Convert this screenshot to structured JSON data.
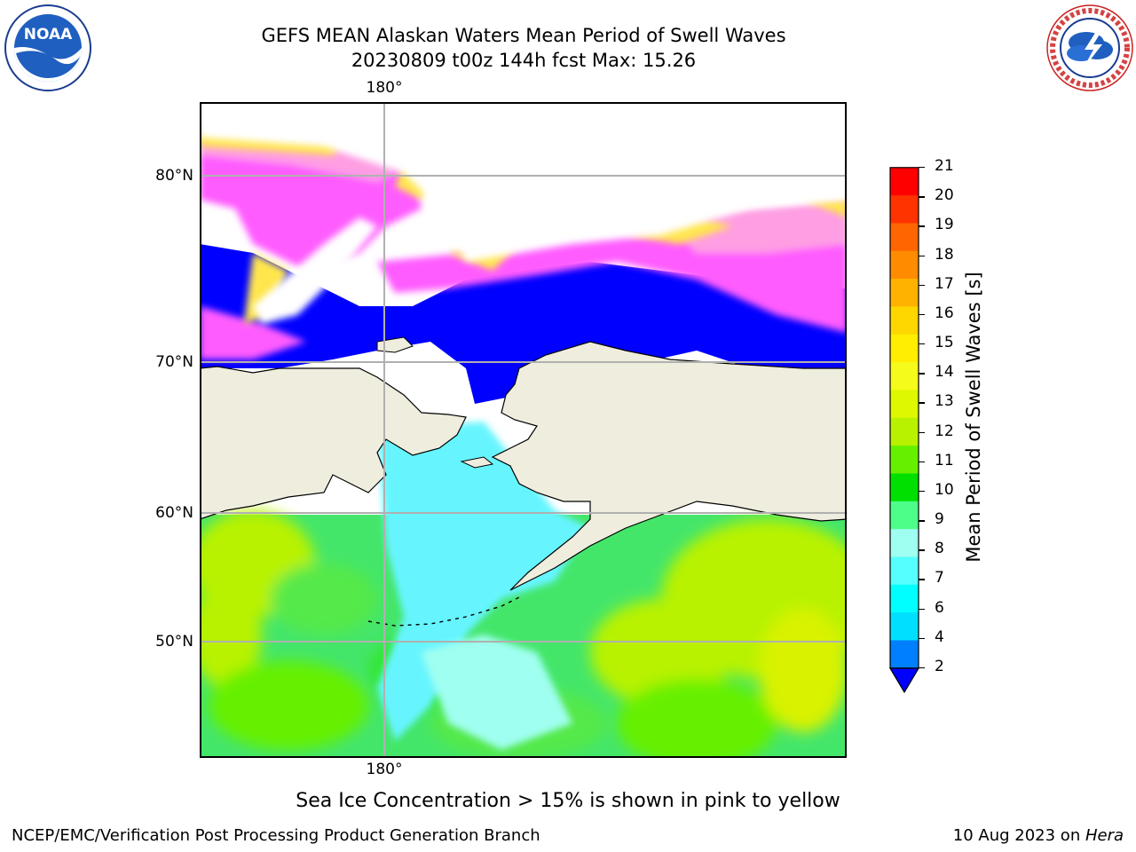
{
  "title": {
    "line1": "GEFS MEAN Alaskan Waters Mean Period of Swell Waves",
    "line2": "20230809 t00z 144h fcst   Max: 15.26"
  },
  "map": {
    "lon_label_top": "180°",
    "lon_label_bottom": "180°",
    "lat_labels": [
      "80°N",
      "70°N",
      "60°N",
      "50°N"
    ],
    "colors": {
      "land": "#efedde",
      "ice_pink": "#ff5cff",
      "ice_light": "#ff9ee3",
      "ice_yellow": "#ffe64d",
      "swell_blue": "#0000ff",
      "swell_mid_blue": "#1e90ff",
      "swell_cyan": "#7ffcff",
      "swell_green_light": "#4cf07a",
      "swell_green": "#33e633",
      "swell_lime": "#aef000",
      "grid": "#b0b0b0"
    }
  },
  "colorbar": {
    "label": "Mean Period of Swell Waves [s]",
    "ticks": [
      "21",
      "20",
      "19",
      "18",
      "17",
      "16",
      "15",
      "14",
      "13",
      "12",
      "11",
      "10",
      "9",
      "8",
      "7",
      "6",
      "4",
      "2"
    ],
    "colors": [
      "#ff0000",
      "#ff3300",
      "#ff6600",
      "#ff8c00",
      "#ffb300",
      "#ffd700",
      "#ffee00",
      "#f5fb1a",
      "#ddf800",
      "#b8f200",
      "#66f000",
      "#00e000",
      "#4dff88",
      "#9ffff0",
      "#55ffff",
      "#00ffff",
      "#00dfff",
      "#007fff"
    ],
    "under_color": "#0000ff"
  },
  "caption": "Sea Ice Concentration > 15% is shown in pink to yellow",
  "footer": {
    "left": "NCEP/EMC/Verification Post Processing Product Generation Branch",
    "right_date": "10 Aug 2023 on ",
    "right_host": "Hera"
  },
  "logos": {
    "noaa_text": "NOAA",
    "noaa_ring_text": "NATIONAL OCEANIC AND ATMOSPHERIC ADMINISTRATION",
    "nws_ring_text": "NATIONAL WEATHER SERVICE"
  }
}
